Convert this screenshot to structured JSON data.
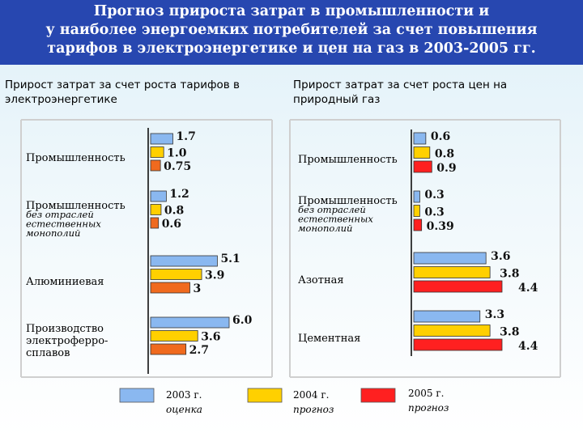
{
  "title_lines": [
    "Прогноз прироста затрат в промышленности и",
    "у наиболее энергоемких потребителей за счет повышения",
    "тарифов в электроэнергетике и цен на газ в 2003-2005 гг."
  ],
  "colors": {
    "s2003": "#8ab8f0",
    "s2004": "#ffd000",
    "s2005": "#ff2020",
    "s2005_left": "#f06a1e"
  },
  "chart_data": [
    {
      "type": "bar",
      "orientation": "horizontal",
      "title_lines": [
        "Прирост затрат за счет роста тарифов в",
        "электроэнергетике"
      ],
      "categories": [
        {
          "main": [
            "Промышленность"
          ],
          "sub": []
        },
        {
          "main": [
            "Промышленность"
          ],
          "sub": [
            "без отраслей",
            "естественных",
            "монополий"
          ]
        },
        {
          "main": [
            "Алюминиевая"
          ],
          "sub": []
        },
        {
          "main": [
            "Производство",
            "электроферро-",
            "сплавов"
          ],
          "sub": []
        }
      ],
      "series": [
        {
          "name": "2003 г. оценка",
          "values": [
            1.7,
            1.2,
            5.1,
            6.0
          ],
          "labels": [
            "1.7",
            "1.2",
            "5.1",
            "6.0"
          ]
        },
        {
          "name": "2004 г. прогноз",
          "values": [
            1.0,
            0.8,
            3.9,
            3.6
          ],
          "labels": [
            "1.0",
            "0.8",
            "3.9",
            "3.6"
          ]
        },
        {
          "name": "2005 г. прогноз",
          "values": [
            0.75,
            0.6,
            3,
            2.7
          ],
          "labels": [
            "0.75",
            "0.6",
            "3",
            "2.7"
          ]
        }
      ],
      "xlim": [
        0,
        6.0
      ]
    },
    {
      "type": "bar",
      "orientation": "horizontal",
      "title_lines": [
        "Прирост затрат за счет роста цен на",
        "природный газ"
      ],
      "categories": [
        {
          "main": [
            "Промышленность"
          ],
          "sub": []
        },
        {
          "main": [
            "Промышленность"
          ],
          "sub": [
            "без отраслей",
            "естественных",
            "монополий"
          ]
        },
        {
          "main": [
            "Азотная"
          ],
          "sub": []
        },
        {
          "main": [
            "Цементная"
          ],
          "sub": []
        }
      ],
      "series": [
        {
          "name": "2003 г. оценка",
          "values": [
            0.6,
            0.3,
            3.6,
            3.3
          ],
          "labels": [
            "0.6",
            "0.3",
            "3.6",
            "3.3"
          ]
        },
        {
          "name": "2004 г. прогноз",
          "values": [
            0.8,
            0.3,
            3.8,
            3.8
          ],
          "labels": [
            "0.8",
            "0.3",
            "3.8",
            "3.8"
          ]
        },
        {
          "name": "2005 г. прогноз",
          "values": [
            0.9,
            0.39,
            4.4,
            4.4
          ],
          "labels": [
            "0.9",
            "0.39",
            "4.4",
            "4.4"
          ]
        }
      ],
      "xlim": [
        0,
        4.4
      ]
    }
  ],
  "legend": [
    {
      "year": "2003 г.",
      "note": "оценка"
    },
    {
      "year": "2004 г.",
      "note": "прогноз"
    },
    {
      "year": "2005 г.",
      "note": "прогноз"
    }
  ]
}
